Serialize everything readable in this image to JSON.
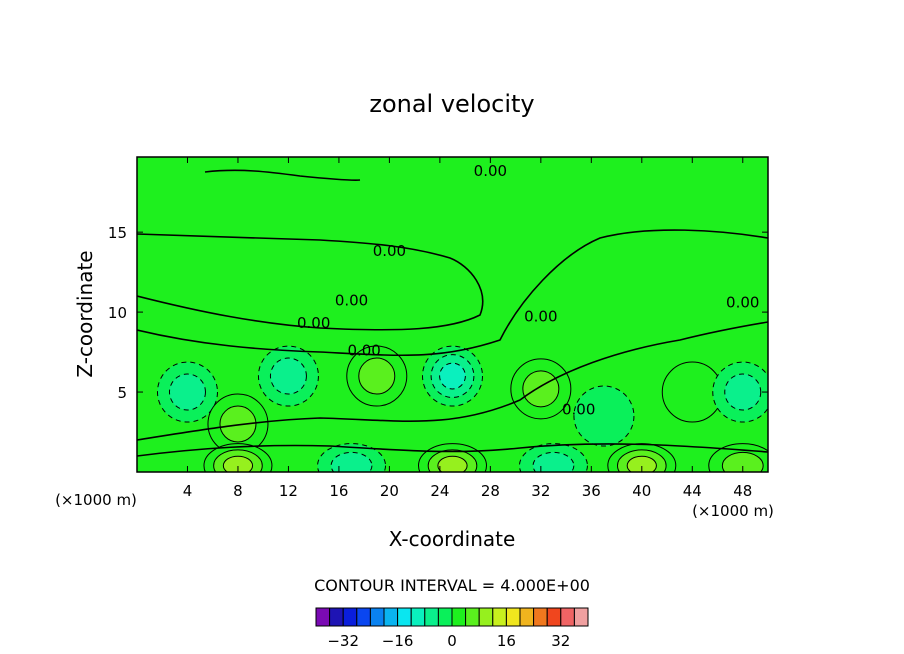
{
  "chart_data": {
    "type": "heatmap",
    "subtype": "filled-contour",
    "title": "zonal velocity",
    "xlabel": "X-coordinate",
    "ylabel": "Z-coordinate",
    "x_units_left": "(×1000 m)",
    "x_units_right": "(×1000 m)",
    "xlim": [
      0,
      50
    ],
    "ylim": [
      0,
      19.7
    ],
    "x_ticks": [
      "4",
      "8",
      "12",
      "16",
      "20",
      "24",
      "28",
      "32",
      "36",
      "40",
      "44",
      "48"
    ],
    "y_ticks": [
      "5",
      "10",
      "15"
    ],
    "contour_interval_text": "CONTOUR INTERVAL = 4.000E+00",
    "contour_labels": [
      "0.00",
      "0.00",
      "0.00",
      "0.00",
      "0.00",
      "0.00",
      "0.00",
      "0.00"
    ],
    "colorbar": {
      "levels": [
        -36,
        -32,
        -28,
        -24,
        -20,
        -16,
        -12,
        -8,
        -4,
        0,
        4,
        8,
        12,
        16,
        20,
        24,
        28,
        32,
        36
      ],
      "tick_labels": [
        "-32",
        "-16",
        "0",
        "16",
        "32"
      ],
      "colors": [
        "#7a0ab4",
        "#1e14b4",
        "#0a1edc",
        "#0a46f0",
        "#0a82f0",
        "#0ab4f0",
        "#0ae6f0",
        "#0af0be",
        "#0af08c",
        "#0af05a",
        "#1ef01e",
        "#5af01e",
        "#96f01e",
        "#c8f01e",
        "#f0e61e",
        "#f0b41e",
        "#f0781e",
        "#f0461e",
        "#f06464",
        "#f0a0a0"
      ]
    },
    "field_features": [
      {
        "x": 4,
        "z": 5.0,
        "value": -8
      },
      {
        "x": 8,
        "z": 3.0,
        "value": 8
      },
      {
        "x": 12,
        "z": 6.0,
        "value": -8
      },
      {
        "x": 19,
        "z": 6.0,
        "value": 8
      },
      {
        "x": 25,
        "z": 6.0,
        "value": -12
      },
      {
        "x": 32,
        "z": 5.2,
        "value": 8
      },
      {
        "x": 37,
        "z": 3.5,
        "value": -4
      },
      {
        "x": 44,
        "z": 5.0,
        "value": 4
      },
      {
        "x": 48,
        "z": 5.0,
        "value": -8
      },
      {
        "x": 8,
        "z": 0.4,
        "value": 12
      },
      {
        "x": 17,
        "z": 0.4,
        "value": -8
      },
      {
        "x": 25,
        "z": 0.4,
        "value": 12
      },
      {
        "x": 33,
        "z": 0.4,
        "value": -8
      },
      {
        "x": 40,
        "z": 0.4,
        "value": 12
      },
      {
        "x": 48,
        "z": 0.4,
        "value": 8
      }
    ]
  }
}
